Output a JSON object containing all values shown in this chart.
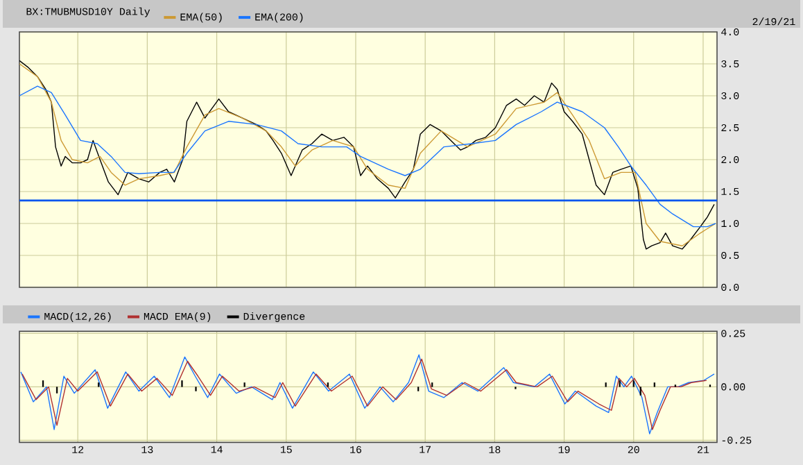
{
  "chart_data": [
    {
      "type": "line",
      "title": "BX:TMUBMUSD10Y Daily",
      "annotations": [
        "2/19/21"
      ],
      "series": [
        {
          "color": "#000000",
          "x": [
            11.16,
            11.28,
            11.42,
            11.54,
            11.62,
            11.68,
            11.76,
            11.82,
            11.92,
            12.04,
            12.14,
            12.22,
            12.32,
            12.44,
            12.58,
            12.72,
            12.88,
            13.02,
            13.18,
            13.28,
            13.39,
            13.51,
            13.57,
            13.71,
            13.83,
            14.03,
            14.17,
            14.37,
            14.57,
            14.71,
            14.81,
            14.93,
            15.07,
            15.23,
            15.37,
            15.51,
            15.67,
            15.83,
            15.97,
            16.07,
            16.17,
            16.31,
            16.47,
            16.57,
            16.71,
            16.83,
            16.93,
            17.07,
            17.23,
            17.37,
            17.51,
            17.61,
            17.73,
            17.87,
            18.01,
            18.17,
            18.31,
            18.43,
            18.57,
            18.71,
            18.82,
            18.9,
            19.0,
            19.12,
            19.26,
            19.36,
            19.46,
            19.58,
            19.7,
            19.82,
            19.96,
            20.06,
            20.14,
            20.18,
            20.26,
            20.38,
            20.46,
            20.56,
            20.7,
            20.82,
            20.96,
            21.06,
            21.16
          ],
          "values": [
            3.55,
            3.45,
            3.3,
            3.1,
            2.9,
            2.2,
            1.9,
            2.05,
            1.95,
            1.95,
            2.0,
            2.3,
            2.0,
            1.65,
            1.45,
            1.8,
            1.7,
            1.65,
            1.8,
            1.85,
            1.65,
            2.0,
            2.6,
            2.9,
            2.65,
            2.95,
            2.75,
            2.65,
            2.55,
            2.45,
            2.3,
            2.1,
            1.75,
            2.15,
            2.25,
            2.4,
            2.3,
            2.35,
            2.2,
            1.75,
            1.9,
            1.7,
            1.55,
            1.4,
            1.65,
            1.85,
            2.4,
            2.55,
            2.45,
            2.3,
            2.15,
            2.2,
            2.3,
            2.35,
            2.5,
            2.85,
            2.95,
            2.85,
            3.0,
            2.9,
            3.2,
            3.1,
            2.75,
            2.6,
            2.4,
            2.0,
            1.6,
            1.45,
            1.8,
            1.85,
            1.9,
            1.55,
            0.75,
            0.6,
            0.65,
            0.7,
            0.85,
            0.65,
            0.6,
            0.75,
            0.95,
            1.1,
            1.3
          ]
        },
        {
          "name": "EMA(50)",
          "color": "#cc9933",
          "x": [
            11.16,
            11.42,
            11.62,
            11.76,
            11.92,
            12.14,
            12.32,
            12.48,
            12.68,
            12.88,
            13.18,
            13.39,
            13.57,
            13.83,
            14.03,
            14.37,
            14.71,
            14.93,
            15.13,
            15.37,
            15.67,
            15.97,
            16.17,
            16.47,
            16.71,
            16.93,
            17.23,
            17.61,
            18.01,
            18.31,
            18.71,
            18.9,
            19.12,
            19.36,
            19.58,
            19.82,
            20.02,
            20.18,
            20.38,
            20.7,
            20.96,
            21.18
          ],
          "values": [
            3.5,
            3.3,
            2.9,
            2.3,
            2.0,
            1.95,
            2.05,
            1.8,
            1.6,
            1.7,
            1.75,
            1.8,
            2.2,
            2.7,
            2.8,
            2.65,
            2.45,
            2.2,
            1.9,
            2.15,
            2.3,
            2.2,
            1.85,
            1.6,
            1.55,
            2.1,
            2.45,
            2.2,
            2.4,
            2.8,
            2.9,
            3.05,
            2.7,
            2.3,
            1.7,
            1.8,
            1.8,
            1.0,
            0.72,
            0.65,
            0.85,
            1.0
          ]
        },
        {
          "name": "EMA(200)",
          "color": "#1a75ff",
          "x": [
            11.16,
            11.42,
            11.62,
            11.82,
            12.04,
            12.28,
            12.48,
            12.68,
            12.88,
            13.18,
            13.38,
            13.57,
            13.83,
            14.17,
            14.57,
            14.93,
            15.17,
            15.51,
            15.87,
            16.07,
            16.47,
            16.71,
            16.93,
            17.27,
            17.67,
            18.01,
            18.31,
            18.67,
            18.9,
            19.26,
            19.58,
            19.78,
            19.96,
            20.18,
            20.38,
            20.56,
            20.86,
            21.06,
            21.18
          ],
          "values": [
            3.0,
            3.15,
            3.05,
            2.7,
            2.3,
            2.25,
            2.05,
            1.8,
            1.78,
            1.8,
            1.8,
            2.1,
            2.45,
            2.6,
            2.55,
            2.45,
            2.25,
            2.2,
            2.2,
            2.05,
            1.85,
            1.75,
            1.85,
            2.2,
            2.25,
            2.3,
            2.55,
            2.75,
            2.9,
            2.75,
            2.5,
            2.2,
            1.9,
            1.6,
            1.3,
            1.15,
            0.95,
            0.95,
            1.0
          ]
        }
      ],
      "ref_lines": [
        {
          "axis": "y",
          "value": 1.36,
          "color": "#0055ee"
        }
      ],
      "xlim": [
        11.16,
        21.2
      ],
      "xticks": [
        12,
        13,
        14,
        15,
        16,
        17,
        18,
        19,
        20,
        21
      ],
      "ylim": [
        0,
        4
      ],
      "yticks": [
        {
          "value": 0,
          "label": "0.0"
        },
        {
          "value": 0.5,
          "label": "0.5"
        },
        {
          "value": 1,
          "label": "1.0"
        },
        {
          "value": 1.5,
          "label": "1.5"
        },
        {
          "value": 2,
          "label": "2.0"
        },
        {
          "value": 2.5,
          "label": "2.5"
        },
        {
          "value": 3,
          "label": "3.0"
        },
        {
          "value": 3.5,
          "label": "3.5"
        },
        {
          "value": 4,
          "label": "4.0"
        }
      ],
      "tick_labels": "y",
      "grid": true,
      "legend": "top left"
    },
    {
      "type": "line",
      "series": [
        {
          "name": "MACD(12,26)",
          "color": "#1a75ff",
          "x": [
            11.18,
            11.36,
            11.55,
            11.66,
            11.8,
            11.95,
            12.25,
            12.43,
            12.69,
            12.88,
            13.1,
            13.32,
            13.54,
            13.69,
            13.87,
            14.04,
            14.28,
            14.5,
            14.8,
            14.91,
            15.09,
            15.39,
            15.61,
            15.91,
            16.13,
            16.35,
            16.54,
            16.76,
            16.91,
            17.05,
            17.27,
            17.53,
            17.76,
            18.13,
            18.27,
            18.57,
            18.79,
            19.01,
            19.16,
            19.46,
            19.64,
            19.75,
            19.86,
            19.97,
            20.12,
            20.23,
            20.34,
            20.49,
            20.64,
            20.79,
            21.01,
            21.16
          ],
          "values": [
            0.07,
            -0.07,
            0.0,
            -0.2,
            0.05,
            -0.03,
            0.08,
            -0.1,
            0.07,
            -0.02,
            0.05,
            -0.05,
            0.14,
            0.05,
            -0.05,
            0.06,
            -0.03,
            0.0,
            -0.06,
            0.02,
            -0.1,
            0.07,
            -0.02,
            0.06,
            -0.1,
            0.0,
            -0.07,
            0.02,
            0.15,
            -0.02,
            -0.05,
            0.02,
            -0.02,
            0.09,
            0.02,
            0.0,
            0.06,
            -0.08,
            -0.02,
            -0.09,
            -0.12,
            0.05,
            0.0,
            0.05,
            -0.05,
            -0.22,
            -0.12,
            0.0,
            0.0,
            0.02,
            0.03,
            0.06
          ]
        },
        {
          "name": "MACD EMA(9)",
          "color": "#b03030",
          "x": [
            11.2,
            11.4,
            11.58,
            11.7,
            11.85,
            12.0,
            12.28,
            12.47,
            12.72,
            12.92,
            13.14,
            13.36,
            13.58,
            13.73,
            13.91,
            14.08,
            14.32,
            14.54,
            14.84,
            14.95,
            15.13,
            15.43,
            15.65,
            15.95,
            16.17,
            16.39,
            16.58,
            16.8,
            16.95,
            17.09,
            17.31,
            17.57,
            17.8,
            18.17,
            18.31,
            18.61,
            18.83,
            19.05,
            19.2,
            19.5,
            19.68,
            19.79,
            19.9,
            20.01,
            20.16,
            20.27,
            20.38,
            20.53,
            20.68,
            20.83,
            21.05
          ],
          "values": [
            0.06,
            -0.06,
            0.0,
            -0.18,
            0.04,
            -0.02,
            0.07,
            -0.09,
            0.06,
            -0.02,
            0.04,
            -0.04,
            0.12,
            0.05,
            -0.04,
            0.05,
            -0.02,
            0.0,
            -0.05,
            0.02,
            -0.09,
            0.06,
            -0.02,
            0.05,
            -0.09,
            0.0,
            -0.06,
            0.02,
            0.13,
            -0.01,
            -0.04,
            0.02,
            -0.02,
            0.08,
            0.02,
            0.0,
            0.05,
            -0.07,
            -0.02,
            -0.08,
            -0.11,
            0.04,
            0.0,
            0.04,
            -0.04,
            -0.2,
            -0.11,
            0.0,
            0.0,
            0.02,
            0.03
          ]
        },
        {
          "name": "Divergence",
          "type": "bar",
          "color": "#000000",
          "x": [
            11.5,
            11.7,
            12.3,
            13.5,
            13.7,
            14.4,
            15.6,
            16.9,
            17.1,
            18.3,
            19.6,
            19.8,
            20.0,
            20.1,
            20.3,
            20.6,
            21.1
          ],
          "values": [
            0.03,
            -0.03,
            0.02,
            0.03,
            -0.02,
            0.02,
            0.02,
            -0.02,
            0.02,
            -0.01,
            0.02,
            0.03,
            0.03,
            -0.04,
            0.02,
            0.01,
            0.01
          ]
        }
      ],
      "xlim": [
        11.16,
        21.2
      ],
      "xticks": [
        12,
        13,
        14,
        15,
        16,
        17,
        18,
        19,
        20,
        21
      ],
      "ylim": [
        -0.26,
        0.26
      ],
      "yticks": [
        {
          "value": -0.25,
          "label": "-0.25"
        },
        {
          "value": 0,
          "label": "0.00"
        },
        0.25
      ],
      "grid": true,
      "legend": "top left"
    }
  ]
}
